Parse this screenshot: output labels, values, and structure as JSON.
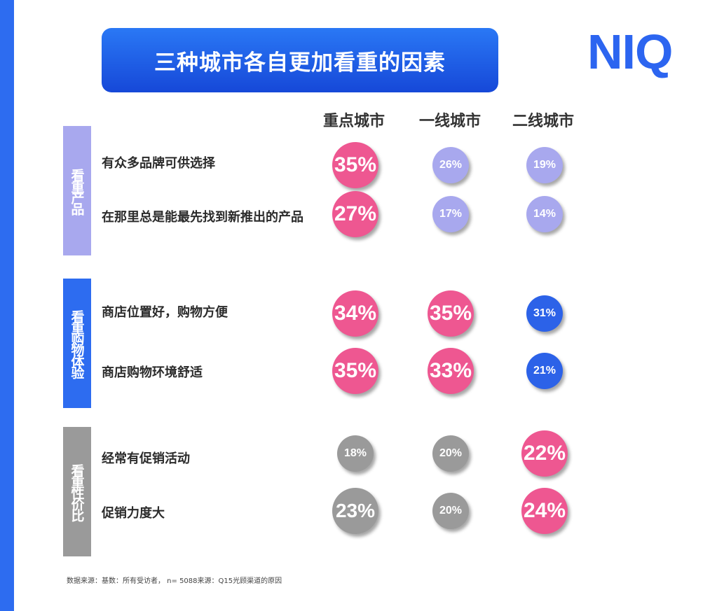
{
  "title": "三种城市各自更加看重的因素",
  "logo": "NIQ",
  "footnote": "数据来源：基数：所有受访者， n= 5088来源：Q15光顾渠道的原因",
  "colors": {
    "accent_blue": "#2d6cf0",
    "pink_high": "#ee5791",
    "lavender": "#a8a8ee",
    "blue": "#2c62e8",
    "gray": "#9a9a9a",
    "group_product": "#a8a8ee",
    "group_experience": "#2d6cf0",
    "group_value": "#9a9a9a"
  },
  "chart_data": {
    "type": "table",
    "columns": [
      "重点城市",
      "一线城市",
      "二线城市"
    ],
    "groups": [
      {
        "label": "看重产品",
        "rows": [
          {
            "label": "有众多品牌可供选择",
            "values": [
              35,
              26,
              19
            ],
            "highlight": [
              true,
              false,
              false
            ]
          },
          {
            "label": "在那里总是能最先找到新推出的产品",
            "values": [
              27,
              17,
              14
            ],
            "highlight": [
              true,
              false,
              false
            ]
          }
        ]
      },
      {
        "label": "看重购物体验",
        "rows": [
          {
            "label": "商店位置好，购物方便",
            "values": [
              34,
              35,
              31
            ],
            "highlight": [
              true,
              true,
              false
            ]
          },
          {
            "label": "商店购物环境舒适",
            "values": [
              35,
              33,
              21
            ],
            "highlight": [
              true,
              true,
              false
            ]
          }
        ]
      },
      {
        "label": "看重性价比",
        "rows": [
          {
            "label": "经常有促销活动",
            "values": [
              18,
              20,
              22
            ],
            "highlight": [
              false,
              false,
              true
            ]
          },
          {
            "label": "促销力度大",
            "values": [
              23,
              20,
              24
            ],
            "highlight": [
              false,
              false,
              true
            ]
          }
        ]
      }
    ]
  }
}
